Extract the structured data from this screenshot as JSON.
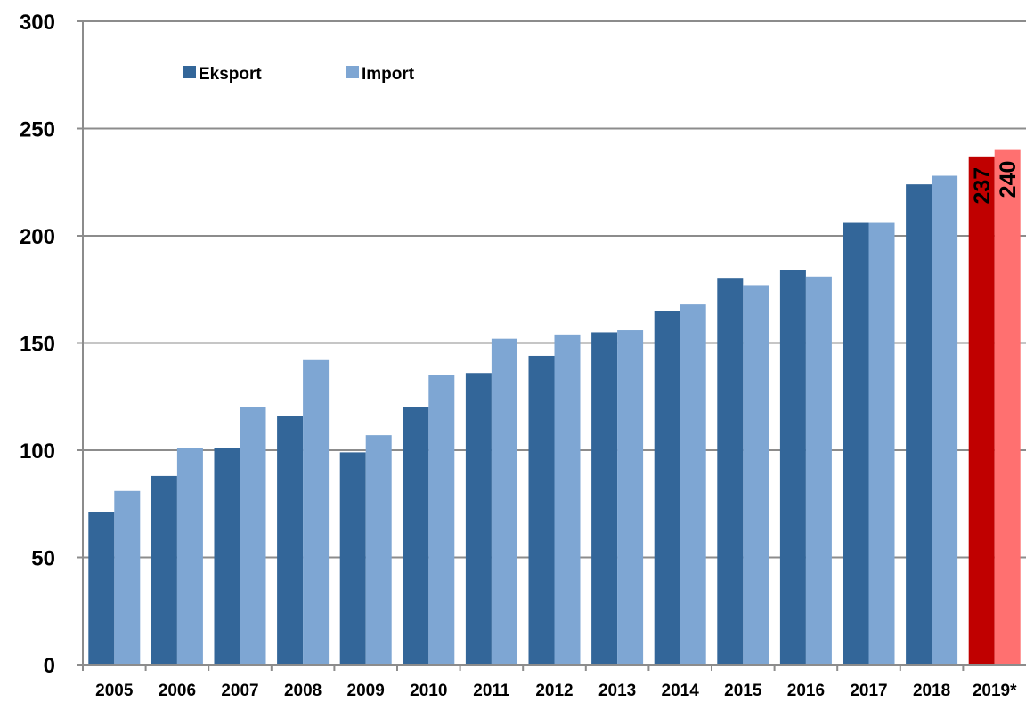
{
  "chart_data": {
    "type": "bar",
    "title": "",
    "xlabel": "",
    "ylabel": "",
    "ylim": [
      0,
      300
    ],
    "yticks": [
      0,
      50,
      100,
      150,
      200,
      250,
      300
    ],
    "grid": true,
    "legend_position": "top-left",
    "categories": [
      "2005",
      "2006",
      "2007",
      "2008",
      "2009",
      "2010",
      "2011",
      "2012",
      "2013",
      "2014",
      "2015",
      "2016",
      "2017",
      "2018",
      "2019*"
    ],
    "series": [
      {
        "name": "Eksport",
        "color": "#336699",
        "values": [
          71,
          88,
          101,
          116,
          99,
          120,
          136,
          144,
          155,
          165,
          180,
          184,
          206,
          224,
          237
        ]
      },
      {
        "name": "Import",
        "color": "#7ea6d3",
        "values": [
          81,
          101,
          120,
          142,
          107,
          135,
          152,
          154,
          156,
          168,
          177,
          181,
          206,
          228,
          240
        ]
      }
    ],
    "highlight": {
      "category": "2019*",
      "colors": [
        "#c00000",
        "#ff7070"
      ],
      "labels": [
        "237",
        "240"
      ]
    }
  }
}
